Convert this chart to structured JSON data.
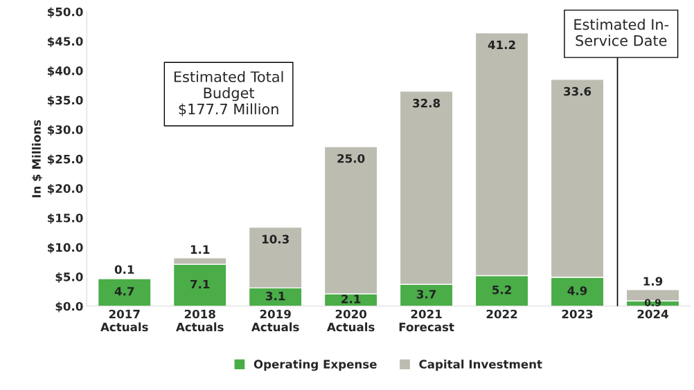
{
  "chart_data": {
    "type": "bar",
    "stacked": true,
    "ylabel": "In $ Millions",
    "categories": [
      "2017\nActuals",
      "2018\nActuals",
      "2019\nActuals",
      "2020\nActuals",
      "2021\nForecast",
      "2022",
      "2023",
      "2024"
    ],
    "series": [
      {
        "name": "Operating Expense",
        "color": "#4aad48",
        "values": [
          4.7,
          7.1,
          3.1,
          2.1,
          3.7,
          5.2,
          4.9,
          0.9
        ],
        "value_labels": [
          "4.7",
          "7.1",
          "3.1",
          "2.1",
          "3.7",
          "5.2",
          "4.9",
          "0.9"
        ]
      },
      {
        "name": "Capital Investment",
        "color": "#bcbcb1",
        "values": [
          0.1,
          1.1,
          10.3,
          25.0,
          32.8,
          41.2,
          33.6,
          1.9
        ],
        "value_labels": [
          "0.1",
          "1.1",
          "10.3",
          "25.0",
          "32.8",
          "41.2",
          "33.6",
          "1.9"
        ]
      }
    ],
    "ylim": [
      0,
      50
    ],
    "yticks": [
      {
        "value": 0,
        "label": "$0.0"
      },
      {
        "value": 5,
        "label": "$5.0"
      },
      {
        "value": 10,
        "label": "$10.0"
      },
      {
        "value": 15,
        "label": "$15.0"
      },
      {
        "value": 20,
        "label": "$20.0"
      },
      {
        "value": 25,
        "label": "$25.0"
      },
      {
        "value": 30,
        "label": "$30.0"
      },
      {
        "value": 35,
        "label": "$35.0"
      },
      {
        "value": 40,
        "label": "$40.0"
      },
      {
        "value": 45,
        "label": "$45.0"
      },
      {
        "value": 50,
        "label": "$50.0"
      }
    ],
    "annotations": [
      "Estimated Total\nBudget\n$177.7 Million",
      "Estimated In-\nService Date"
    ],
    "legend": "bottom",
    "grid": false
  }
}
